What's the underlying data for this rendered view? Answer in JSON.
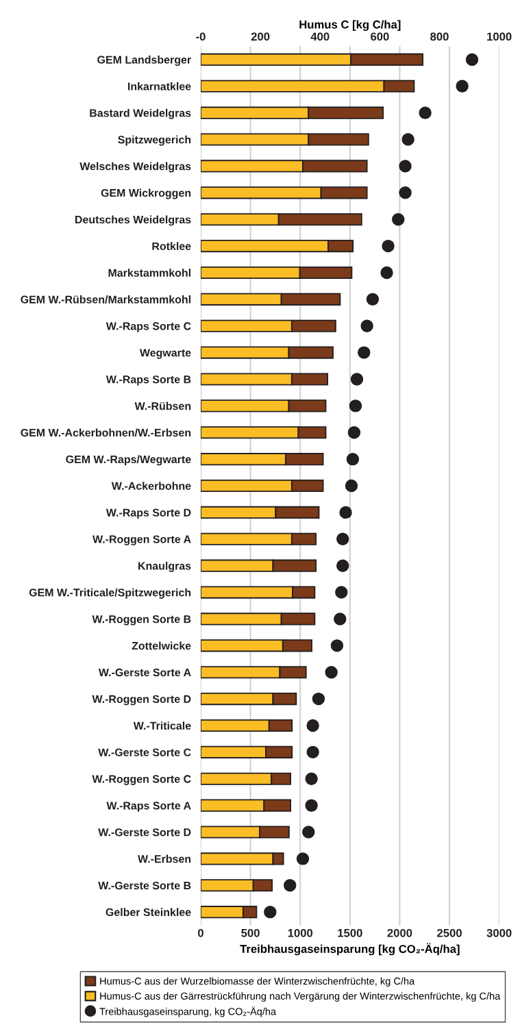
{
  "chart_data": {
    "type": "bar",
    "orientation": "horizontal",
    "stacked": true,
    "categories": [
      "GEM Landsberger",
      "Inkarnatklee",
      "Bastard Weidelgras",
      "Spitzwegerich",
      "Welsches Weidelgras",
      "GEM Wickroggen",
      "Deutsches Weidelgras",
      "Rotklee",
      "Markstammkohl",
      "GEM W.-Rübsen/Markstammkohl",
      "W.-Raps Sorte C",
      "Wegwarte",
      "W.-Raps Sorte B",
      "W.-Rübsen",
      "GEM W.-Ackerbohnen/W.-Erbsen",
      "GEM W.-Raps/Wegwarte",
      "W.-Ackerbohne",
      "W.-Raps Sorte D",
      "W.-Roggen Sorte A",
      "Knaulgras",
      "GEM W.-Triticale/Spitzwegerich",
      "W.-Roggen Sorte B",
      "Zottelwicke",
      "W.-Gerste Sorte A",
      "W.-Roggen Sorte D",
      "W.-Triticale",
      "W.-Gerste Sorte C",
      "W.-Roggen Sorte C",
      "W.-Raps Sorte A",
      "W.-Gerste Sorte D",
      "W.-Erbsen",
      "W.-Gerste Sorte B",
      "Gelber Steinklee"
    ],
    "series": [
      {
        "name": "Humus-C aus der Gärrestrückführung nach Vergärung der Winterzwischenfrüchte, kg C/ha",
        "color": "#fbbd26",
        "axis": "x2",
        "values": [
          503,
          614,
          361,
          361,
          342,
          403,
          261,
          427,
          332,
          270,
          305,
          295,
          305,
          295,
          327,
          285,
          305,
          251,
          305,
          242,
          308,
          270,
          275,
          265,
          242,
          229,
          218,
          237,
          212,
          198,
          242,
          176,
          142
        ]
      },
      {
        "name": "Humus-C aus der Wurzelbiomasse der Winterzwischenfrüchte, kg C/ha",
        "color": "#7b3a19",
        "axis": "x2",
        "values": [
          241,
          101,
          250,
          201,
          215,
          154,
          278,
          83,
          174,
          197,
          147,
          148,
          120,
          124,
          92,
          125,
          105,
          145,
          81,
          144,
          74,
          112,
          97,
          88,
          78,
          77,
          88,
          64,
          89,
          98,
          35,
          63,
          45
        ]
      },
      {
        "name": "Treibhausgaseinsparung, kg CO₂-Äq/ha",
        "type": "scatter",
        "color": "#231f20",
        "marker": "circle",
        "values": [
          2727,
          2628,
          2256,
          2084,
          2056,
          2056,
          1985,
          1884,
          1870,
          1728,
          1671,
          1641,
          1570,
          1556,
          1542,
          1528,
          1515,
          1457,
          1427,
          1427,
          1414,
          1400,
          1370,
          1313,
          1184,
          1127,
          1127,
          1113,
          1113,
          1083,
          1026,
          897,
          698
        ]
      }
    ],
    "xlabel": "Treibhausgaseinsparung [kg CO₂-Äq/ha]",
    "xlim": [
      0,
      3000
    ],
    "xticks": [
      0,
      500,
      1000,
      1500,
      2000,
      2500,
      3000
    ],
    "x2label": "Humus C [kg C/ha]",
    "x2lim": [
      0,
      1000
    ],
    "x2ticks": [
      {
        "value": 0,
        "label": "-0"
      },
      200,
      400,
      600,
      800,
      1000
    ],
    "grid": "x",
    "legend": "bottom"
  }
}
